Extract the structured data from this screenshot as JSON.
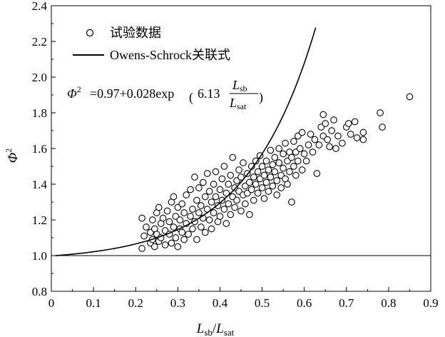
{
  "chart_data": {
    "type": "scatter",
    "title": "",
    "xlabel": {
      "main": "L",
      "sub": "sb",
      "sep": "/",
      "main2": "L",
      "sub2": "sat"
    },
    "ylabel": {
      "symbol": "Φ",
      "sup": "2"
    },
    "xlim": [
      0,
      0.9
    ],
    "ylim": [
      0.8,
      2.4
    ],
    "x_ticks": [
      "0",
      "0.1",
      "0.2",
      "0.3",
      "0.4",
      "0.5",
      "0.6",
      "0.7",
      "0.8",
      "0.9"
    ],
    "y_ticks": [
      "0.8",
      "1.0",
      "1.2",
      "1.4",
      "1.6",
      "1.8",
      "2.0",
      "2.2",
      "2.4"
    ],
    "reference_line_y": 1.0,
    "legend": {
      "position": "top-left",
      "items": [
        {
          "marker": "circle",
          "label": "试验数据"
        },
        {
          "marker": "line",
          "label": "Owens-Schrock关联式"
        }
      ]
    },
    "formula": {
      "lhs_symbol": "Φ",
      "lhs_sup": "2",
      "rhs_prefix": "=0.97+0.028exp",
      "coef": "6.13",
      "frac_num": "L",
      "frac_num_sub": "sb",
      "frac_den": "L",
      "frac_den_sub": "sat"
    },
    "series": [
      {
        "name": "试验数据",
        "kind": "scatter",
        "points": [
          [
            0.215,
            1.04
          ],
          [
            0.215,
            1.21
          ],
          [
            0.22,
            1.11
          ],
          [
            0.225,
            1.16
          ],
          [
            0.235,
            1.07
          ],
          [
            0.235,
            1.13
          ],
          [
            0.24,
            1.2
          ],
          [
            0.24,
            1.09
          ],
          [
            0.245,
            1.05
          ],
          [
            0.245,
            1.15
          ],
          [
            0.25,
            1.24
          ],
          [
            0.25,
            1.12
          ],
          [
            0.255,
            1.27
          ],
          [
            0.255,
            1.08
          ],
          [
            0.26,
            1.18
          ],
          [
            0.26,
            1.1
          ],
          [
            0.265,
            1.21
          ],
          [
            0.27,
            1.14
          ],
          [
            0.27,
            1.06
          ],
          [
            0.275,
            1.25
          ],
          [
            0.28,
            1.12
          ],
          [
            0.28,
            1.19
          ],
          [
            0.285,
            1.3
          ],
          [
            0.285,
            1.07
          ],
          [
            0.29,
            1.33
          ],
          [
            0.29,
            1.16
          ],
          [
            0.295,
            1.1
          ],
          [
            0.295,
            1.22
          ],
          [
            0.3,
            1.27
          ],
          [
            0.3,
            1.05
          ],
          [
            0.305,
            1.15
          ],
          [
            0.305,
            1.2
          ],
          [
            0.31,
            1.13
          ],
          [
            0.31,
            1.29
          ],
          [
            0.315,
            1.24
          ],
          [
            0.315,
            1.09
          ],
          [
            0.32,
            1.34
          ],
          [
            0.32,
            1.18
          ],
          [
            0.325,
            1.12
          ],
          [
            0.33,
            1.22
          ],
          [
            0.33,
            1.37
          ],
          [
            0.335,
            1.26
          ],
          [
            0.335,
            1.15
          ],
          [
            0.34,
            1.44
          ],
          [
            0.34,
            1.19
          ],
          [
            0.345,
            1.09
          ],
          [
            0.345,
            1.31
          ],
          [
            0.35,
            1.24
          ],
          [
            0.35,
            1.38
          ],
          [
            0.355,
            1.16
          ],
          [
            0.355,
            1.28
          ],
          [
            0.36,
            1.21
          ],
          [
            0.36,
            1.41
          ],
          [
            0.365,
            1.13
          ],
          [
            0.365,
            1.33
          ],
          [
            0.37,
            1.26
          ],
          [
            0.37,
            1.46
          ],
          [
            0.375,
            1.2
          ],
          [
            0.375,
            1.36
          ],
          [
            0.38,
            1.3
          ],
          [
            0.38,
            1.15
          ],
          [
            0.385,
            1.4
          ],
          [
            0.385,
            1.24
          ],
          [
            0.39,
            1.33
          ],
          [
            0.39,
            1.47
          ],
          [
            0.395,
            1.19
          ],
          [
            0.395,
            1.28
          ],
          [
            0.4,
            1.37
          ],
          [
            0.4,
            1.22
          ],
          [
            0.405,
            1.43
          ],
          [
            0.405,
            1.31
          ],
          [
            0.41,
            1.26
          ],
          [
            0.41,
            1.5
          ],
          [
            0.415,
            1.35
          ],
          [
            0.415,
            1.18
          ],
          [
            0.42,
            1.4
          ],
          [
            0.42,
            1.29
          ],
          [
            0.425,
            1.45
          ],
          [
            0.425,
            1.23
          ],
          [
            0.43,
            1.33
          ],
          [
            0.43,
            1.55
          ],
          [
            0.435,
            1.38
          ],
          [
            0.435,
            1.27
          ],
          [
            0.44,
            1.42
          ],
          [
            0.44,
            1.31
          ],
          [
            0.445,
            1.48
          ],
          [
            0.445,
            1.36
          ],
          [
            0.45,
            1.25
          ],
          [
            0.45,
            1.44
          ],
          [
            0.455,
            1.34
          ],
          [
            0.455,
            1.52
          ],
          [
            0.46,
            1.39
          ],
          [
            0.46,
            1.29
          ],
          [
            0.465,
            1.46
          ],
          [
            0.465,
            1.35
          ],
          [
            0.47,
            1.23
          ],
          [
            0.47,
            1.41
          ],
          [
            0.475,
            1.5
          ],
          [
            0.475,
            1.37
          ],
          [
            0.48,
            1.44
          ],
          [
            0.48,
            1.31
          ],
          [
            0.485,
            1.53
          ],
          [
            0.485,
            1.4
          ],
          [
            0.49,
            1.35
          ],
          [
            0.49,
            1.47
          ],
          [
            0.495,
            1.43
          ],
          [
            0.495,
            1.56
          ],
          [
            0.5,
            1.38
          ],
          [
            0.5,
            1.5
          ],
          [
            0.505,
            1.45
          ],
          [
            0.505,
            1.32
          ],
          [
            0.51,
            1.53
          ],
          [
            0.51,
            1.41
          ],
          [
            0.515,
            1.48
          ],
          [
            0.515,
            1.36
          ],
          [
            0.52,
            1.59
          ],
          [
            0.52,
            1.44
          ],
          [
            0.525,
            1.51
          ],
          [
            0.525,
            1.39
          ],
          [
            0.53,
            1.47
          ],
          [
            0.53,
            1.55
          ],
          [
            0.535,
            1.42
          ],
          [
            0.535,
            1.34
          ],
          [
            0.54,
            1.52
          ],
          [
            0.54,
            1.6
          ],
          [
            0.545,
            1.45
          ],
          [
            0.545,
            1.38
          ],
          [
            0.55,
            1.57
          ],
          [
            0.55,
            1.49
          ],
          [
            0.555,
            1.43
          ],
          [
            0.555,
            1.63
          ],
          [
            0.56,
            1.53
          ],
          [
            0.56,
            1.4
          ],
          [
            0.565,
            1.58
          ],
          [
            0.565,
            1.47
          ],
          [
            0.57,
            1.3
          ],
          [
            0.57,
            1.55
          ],
          [
            0.575,
            1.64
          ],
          [
            0.575,
            1.5
          ],
          [
            0.58,
            1.45
          ],
          [
            0.58,
            1.58
          ],
          [
            0.585,
            1.67
          ],
          [
            0.585,
            1.53
          ],
          [
            0.59,
            1.6
          ],
          [
            0.595,
            1.48
          ],
          [
            0.595,
            1.69
          ],
          [
            0.6,
            1.57
          ],
          [
            0.605,
            1.53
          ],
          [
            0.61,
            1.62
          ],
          [
            0.615,
            1.68
          ],
          [
            0.62,
            1.58
          ],
          [
            0.625,
            1.65
          ],
          [
            0.63,
            1.46
          ],
          [
            0.635,
            1.62
          ],
          [
            0.64,
            1.72
          ],
          [
            0.645,
            1.79
          ],
          [
            0.645,
            1.67
          ],
          [
            0.65,
            1.74
          ],
          [
            0.655,
            1.65
          ],
          [
            0.66,
            1.61
          ],
          [
            0.665,
            1.7
          ],
          [
            0.67,
            1.76
          ],
          [
            0.675,
            1.6
          ],
          [
            0.68,
            1.67
          ],
          [
            0.69,
            1.63
          ],
          [
            0.7,
            1.72
          ],
          [
            0.705,
            1.74
          ],
          [
            0.71,
            1.68
          ],
          [
            0.72,
            1.75
          ],
          [
            0.725,
            1.66
          ],
          [
            0.74,
            1.69
          ],
          [
            0.74,
            1.65
          ],
          [
            0.78,
            1.8
          ],
          [
            0.785,
            1.72
          ],
          [
            0.85,
            1.89
          ]
        ]
      },
      {
        "name": "Owens-Schrock关联式",
        "kind": "line",
        "equation": "0.97+0.028exp(6.13x)",
        "x_range": [
          0.01,
          0.627
        ]
      }
    ]
  }
}
